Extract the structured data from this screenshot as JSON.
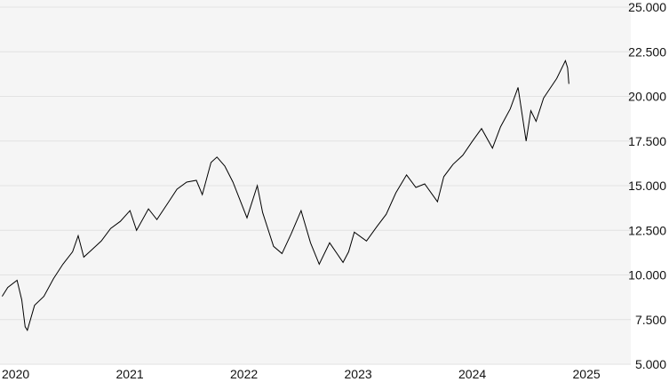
{
  "chart_data": {
    "type": "line",
    "title": "",
    "xlabel": "",
    "ylabel": "",
    "xlim": [
      "2020-01-01",
      "2025-06-01"
    ],
    "ylim": [
      5000,
      25000
    ],
    "grid": true,
    "y_axis_side": "right",
    "x_ticks": [
      "2020",
      "2021",
      "2022",
      "2023",
      "2024",
      "2025"
    ],
    "y_ticks": [
      {
        "value": 5000,
        "label": "5.000"
      },
      {
        "value": 7500,
        "label": "7.500"
      },
      {
        "value": 10000,
        "label": "10.000"
      },
      {
        "value": 12500,
        "label": "12.500"
      },
      {
        "value": 15000,
        "label": "15.000"
      },
      {
        "value": 17500,
        "label": "17.500"
      },
      {
        "value": 20000,
        "label": "20.000"
      },
      {
        "value": 22500,
        "label": "22.500"
      },
      {
        "value": 25000,
        "label": "25.000"
      }
    ],
    "colors": {
      "line": "#000000",
      "background": "#f5f5f5",
      "grid": "#e2e2e2"
    },
    "series": [
      {
        "points": [
          [
            "2020-01-02",
            8800
          ],
          [
            "2020-01-20",
            9300
          ],
          [
            "2020-02-19",
            9700
          ],
          [
            "2020-03-05",
            8600
          ],
          [
            "2020-03-16",
            7100
          ],
          [
            "2020-03-23",
            6900
          ],
          [
            "2020-04-15",
            8300
          ],
          [
            "2020-05-15",
            8800
          ],
          [
            "2020-06-15",
            9800
          ],
          [
            "2020-07-15",
            10600
          ],
          [
            "2020-08-15",
            11300
          ],
          [
            "2020-09-02",
            12200
          ],
          [
            "2020-09-20",
            11000
          ],
          [
            "2020-10-15",
            11400
          ],
          [
            "2020-11-15",
            11900
          ],
          [
            "2020-12-15",
            12600
          ],
          [
            "2021-01-15",
            13000
          ],
          [
            "2021-02-15",
            13600
          ],
          [
            "2021-03-08",
            12500
          ],
          [
            "2021-04-15",
            13700
          ],
          [
            "2021-05-12",
            13100
          ],
          [
            "2021-06-15",
            14000
          ],
          [
            "2021-07-15",
            14800
          ],
          [
            "2021-08-15",
            15200
          ],
          [
            "2021-09-15",
            15300
          ],
          [
            "2021-10-04",
            14500
          ],
          [
            "2021-11-01",
            16300
          ],
          [
            "2021-11-20",
            16600
          ],
          [
            "2021-12-15",
            16100
          ],
          [
            "2022-01-10",
            15200
          ],
          [
            "2022-02-24",
            13200
          ],
          [
            "2022-03-29",
            15000
          ],
          [
            "2022-04-15",
            13500
          ],
          [
            "2022-05-20",
            11600
          ],
          [
            "2022-06-16",
            11200
          ],
          [
            "2022-07-15",
            12300
          ],
          [
            "2022-08-16",
            13600
          ],
          [
            "2022-09-15",
            11800
          ],
          [
            "2022-10-13",
            10600
          ],
          [
            "2022-11-15",
            11800
          ],
          [
            "2022-12-28",
            10700
          ],
          [
            "2023-01-15",
            11300
          ],
          [
            "2023-02-02",
            12400
          ],
          [
            "2023-03-13",
            11900
          ],
          [
            "2023-04-15",
            12700
          ],
          [
            "2023-05-15",
            13400
          ],
          [
            "2023-06-15",
            14600
          ],
          [
            "2023-07-19",
            15600
          ],
          [
            "2023-08-18",
            14900
          ],
          [
            "2023-09-15",
            15100
          ],
          [
            "2023-10-26",
            14100
          ],
          [
            "2023-11-15",
            15500
          ],
          [
            "2023-12-15",
            16200
          ],
          [
            "2024-01-15",
            16700
          ],
          [
            "2024-02-15",
            17500
          ],
          [
            "2024-03-15",
            18200
          ],
          [
            "2024-04-19",
            17100
          ],
          [
            "2024-05-15",
            18300
          ],
          [
            "2024-06-15",
            19300
          ],
          [
            "2024-07-10",
            20500
          ],
          [
            "2024-08-05",
            17500
          ],
          [
            "2024-08-20",
            19200
          ],
          [
            "2024-09-06",
            18600
          ],
          [
            "2024-09-30",
            19900
          ],
          [
            "2024-10-15",
            20300
          ],
          [
            "2024-11-11",
            21000
          ],
          [
            "2024-12-09",
            22000
          ],
          [
            "2024-12-16",
            21600
          ],
          [
            "2024-12-20",
            20700
          ]
        ]
      }
    ]
  }
}
